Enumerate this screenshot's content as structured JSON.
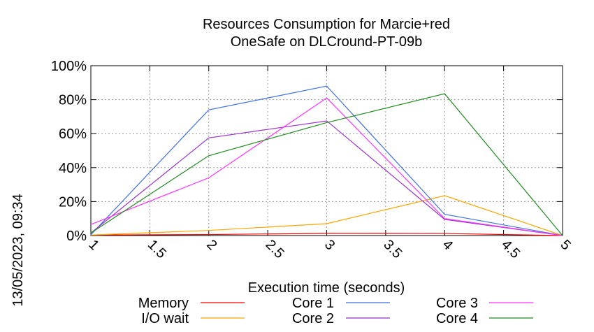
{
  "chart_data": {
    "type": "line",
    "title": [
      "Resources Consumption for Marcie+red",
      "OneSafe on DLCround-PT-09b"
    ],
    "xlabel": "Execution time (seconds)",
    "ylabel": "",
    "xlim": [
      1,
      5
    ],
    "ylim": [
      0,
      100
    ],
    "x_ticks": [
      "1",
      "1.5",
      "2",
      "2.5",
      "3",
      "3.5",
      "4",
      "4.5",
      "5"
    ],
    "y_ticks": [
      "0%",
      "20%",
      "40%",
      "60%",
      "80%",
      "100%"
    ],
    "grid": true,
    "legend_position": "bottom",
    "side_label": "13/05/2023, 09:34",
    "x": [
      1,
      2,
      3,
      4,
      5
    ],
    "series": [
      {
        "name": "Memory",
        "color": "#ff0000",
        "values": [
          0.3,
          0.6,
          1.3,
          1.2,
          0
        ]
      },
      {
        "name": "I/O wait",
        "color": "#ffa500",
        "values": [
          0.3,
          3,
          7,
          23.5,
          0
        ]
      },
      {
        "name": "Core 1",
        "color": "#4070e0",
        "values": [
          0.5,
          74,
          88,
          12.5,
          0
        ]
      },
      {
        "name": "Core 2",
        "color": "#9932cc",
        "values": [
          1.5,
          57.5,
          67.5,
          9.5,
          0
        ]
      },
      {
        "name": "Core 3",
        "color": "#ff33ff",
        "values": [
          6.5,
          34,
          81,
          10,
          0
        ]
      },
      {
        "name": "Core 4",
        "color": "#228b22",
        "values": [
          1.5,
          47,
          66.5,
          83.5,
          0
        ]
      }
    ]
  }
}
